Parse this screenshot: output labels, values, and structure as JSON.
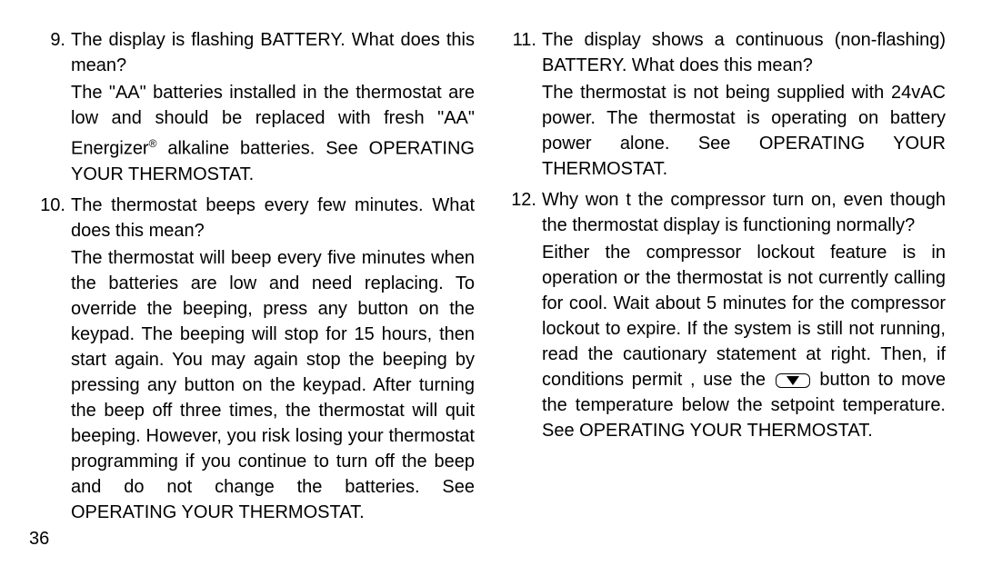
{
  "page_number": "36",
  "left": [
    {
      "num": "9.",
      "q": "The display is flashing BATTERY.  What does this mean?",
      "a": "The \"AA\" batteries installed in the thermostat are low and should be replaced with fresh \"AA\" Energizer® alkaline batteries.  See OPERATING YOUR THERMOSTAT."
    },
    {
      "num": "10.",
      "q": "The thermostat beeps every few minutes.  What does this mean?",
      "a": "The thermostat will beep every five minutes when the batteries are low and need replacing.  To override the beeping, press any button on the keypad.  The beeping will stop for 15 hours, then start again.  You may again stop the beeping by pressing any button on the keypad.  After turning the beep off three times, the thermostat will quit beeping.  However, you risk losing your thermostat programming if you continue to turn off the beep and do not change the batteries.  See OPERATING YOUR THERMOSTAT."
    }
  ],
  "right": [
    {
      "num": "11.",
      "q": "The display shows a continuous (non-flashing) BATTERY.  What does this mean?",
      "a": "The thermostat is not being supplied with 24vAC power.  The thermostat is operating on battery power alone.  See OPERATING YOUR THERMOSTAT."
    },
    {
      "num": "12.",
      "q": "Why won t the compressor turn on, even though the thermostat display is functioning normally?",
      "a_pre": "Either the compressor lockout feature is in operation or the thermostat is not currently calling for cool.  Wait about 5 minutes for the compressor lockout to expire.  If the system is still not running, read the cautionary statement at right.  Then, if conditions permit   , use the ",
      "a_post": " button to move the temperature below the setpoint temperature.  See OPERATING YOUR THERMOSTAT.",
      "has_button": true
    }
  ]
}
